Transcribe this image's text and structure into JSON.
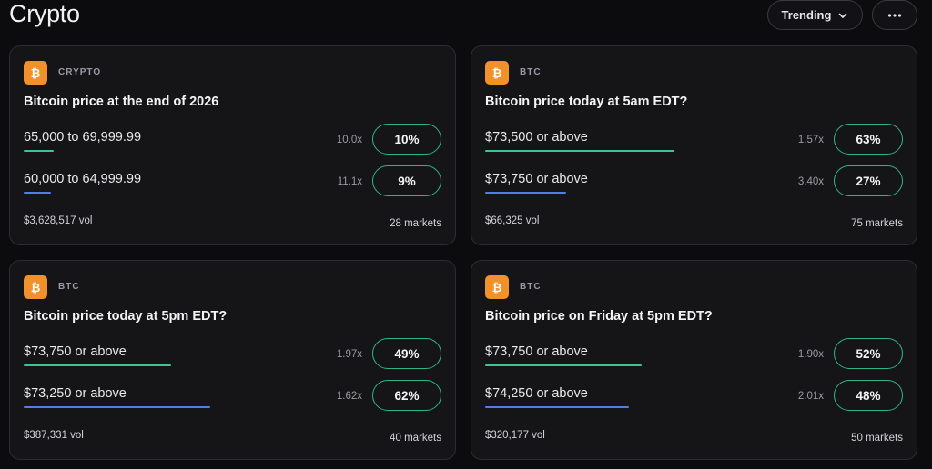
{
  "page": {
    "title": "Crypto"
  },
  "toolbar": {
    "sort_label": "Trending"
  },
  "colors": {
    "accent_green": "#3ec48e",
    "accent_blue": "#4f7fe6",
    "btc_orange": "#f2902a"
  },
  "cards": [
    {
      "category": "CRYPTO",
      "question": "Bitcoin price at the end of 2026",
      "outcomes": [
        {
          "label": "65,000 to 69,999.99",
          "multiplier": "10.0x",
          "percent": "10%",
          "bar_fraction": 0.1
        },
        {
          "label": "60,000 to 64,999.99",
          "multiplier": "11.1x",
          "percent": "9%",
          "bar_fraction": 0.09
        }
      ],
      "volume": "$3,628,517 vol",
      "markets": "28 markets"
    },
    {
      "category": "BTC",
      "question": "Bitcoin price today at 5am EDT?",
      "outcomes": [
        {
          "label": "$73,500 or above",
          "multiplier": "1.57x",
          "percent": "63%",
          "bar_fraction": 0.63
        },
        {
          "label": "$73,750 or above",
          "multiplier": "3.40x",
          "percent": "27%",
          "bar_fraction": 0.27
        }
      ],
      "volume": "$66,325 vol",
      "markets": "75 markets"
    },
    {
      "category": "BTC",
      "question": "Bitcoin price today at 5pm EDT?",
      "outcomes": [
        {
          "label": "$73,750 or above",
          "multiplier": "1.97x",
          "percent": "49%",
          "bar_fraction": 0.49
        },
        {
          "label": "$73,250 or above",
          "multiplier": "1.62x",
          "percent": "62%",
          "bar_fraction": 0.62
        }
      ],
      "volume": "$387,331 vol",
      "markets": "40 markets"
    },
    {
      "category": "BTC",
      "question": "Bitcoin price on Friday at 5pm EDT?",
      "outcomes": [
        {
          "label": "$73,750 or above",
          "multiplier": "1.90x",
          "percent": "52%",
          "bar_fraction": 0.52
        },
        {
          "label": "$74,250 or above",
          "multiplier": "2.01x",
          "percent": "48%",
          "bar_fraction": 0.48
        }
      ],
      "volume": "$320,177 vol",
      "markets": "50 markets"
    }
  ]
}
